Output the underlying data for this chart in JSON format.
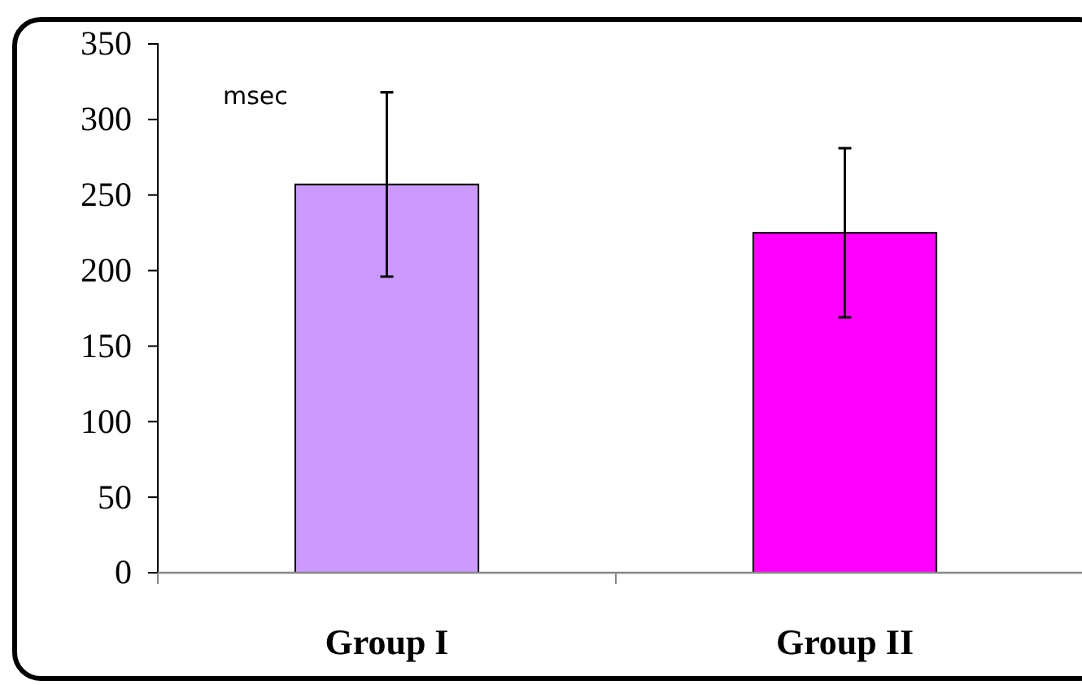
{
  "chart_data": {
    "type": "bar",
    "ylabel": "msec",
    "categories": [
      "Group I",
      "Group II"
    ],
    "values": [
      257,
      225
    ],
    "errors": [
      61,
      56
    ],
    "colors": [
      "#cc99ff",
      "#ff00ff"
    ],
    "ylim": [
      0,
      350
    ],
    "yticks": [
      0,
      50,
      100,
      150,
      200,
      250,
      300,
      350
    ],
    "grid": false
  }
}
